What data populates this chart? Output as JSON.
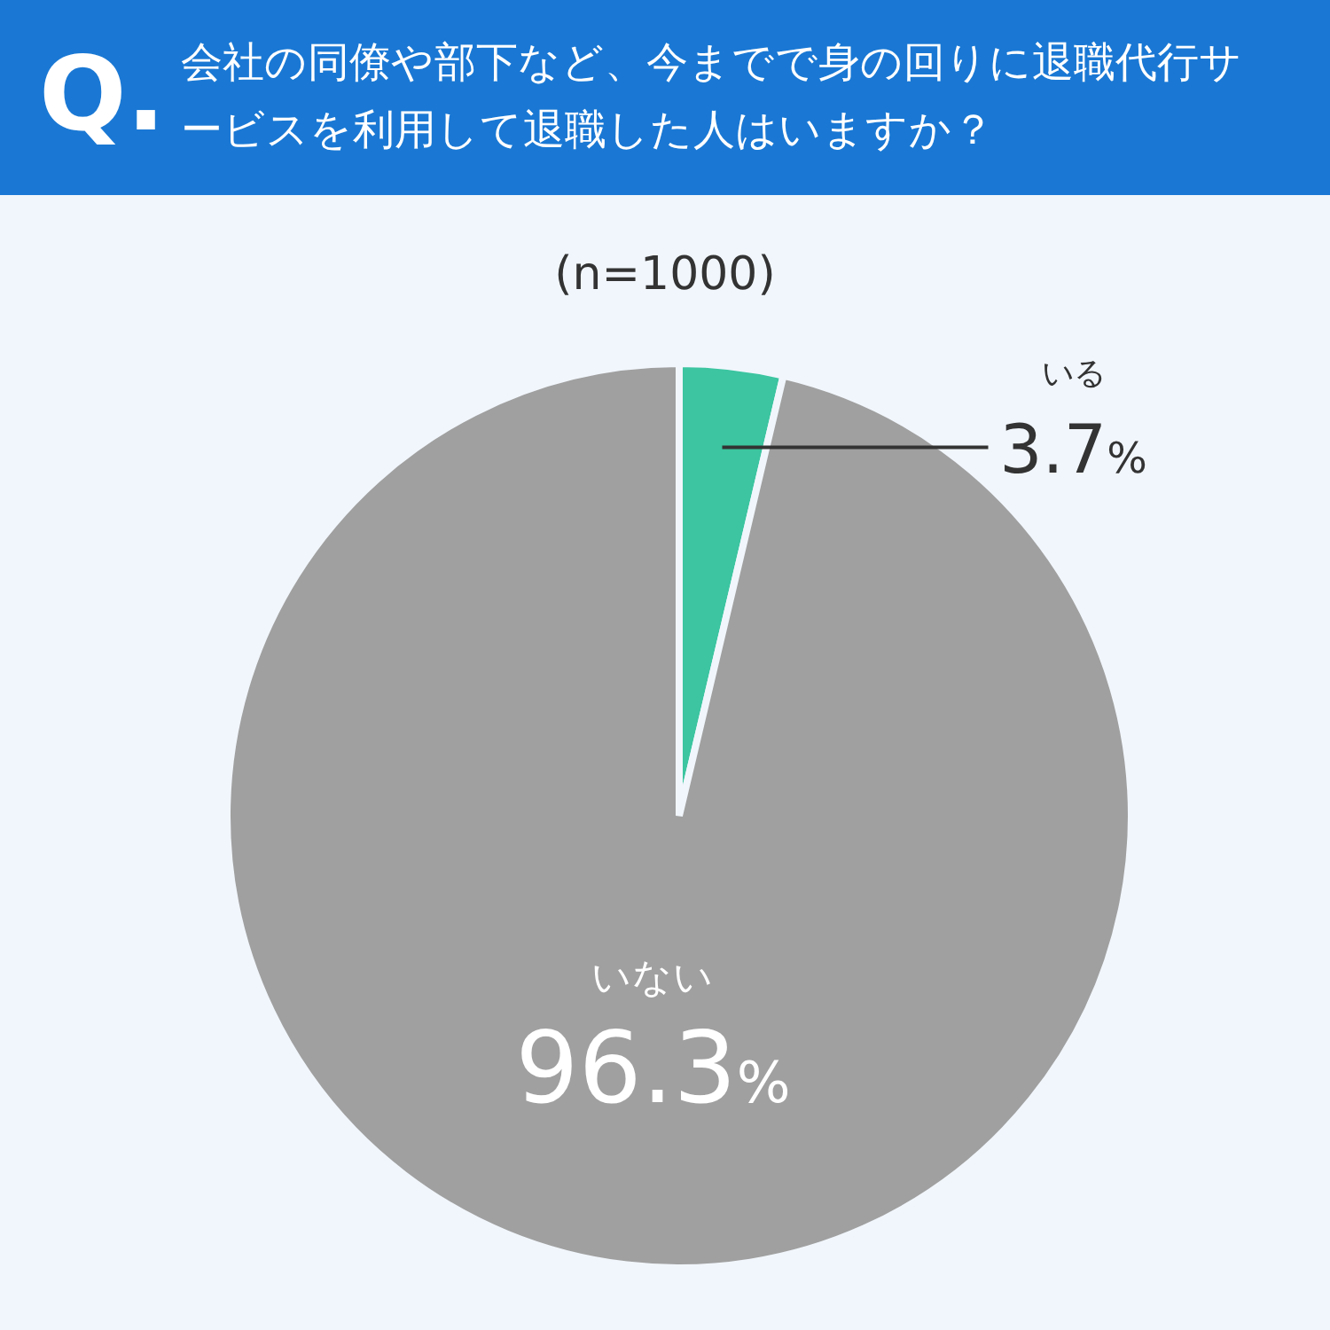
{
  "chart_data": {
    "type": "pie",
    "title": "会社の同僚や部下など、今までで身の回りに退職代行サービスを利用して退職した人はいますか？",
    "subtitle": "(n=1000)",
    "annotations": [
      "Q."
    ],
    "categories": [
      "いる",
      "いない"
    ],
    "values": [
      3.7,
      96.3
    ],
    "colors": [
      "#3cc5a0",
      "#a0a0a0"
    ],
    "value_labels": [
      "3.7%",
      "96.3%"
    ]
  }
}
